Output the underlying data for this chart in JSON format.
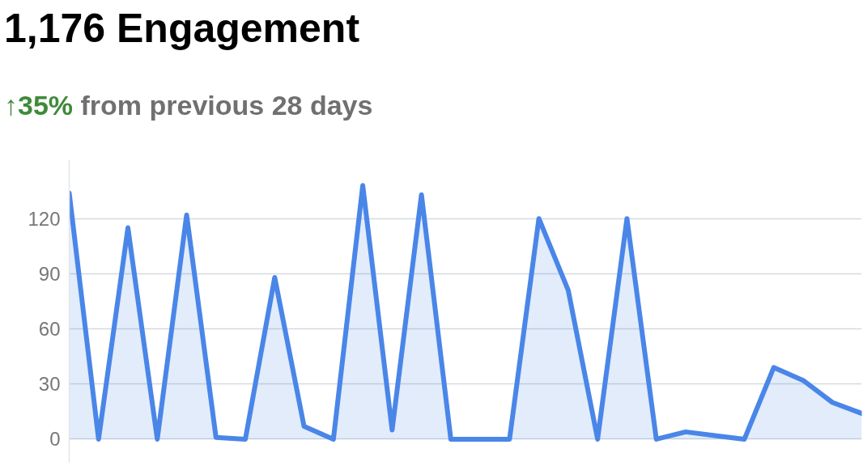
{
  "chart_data": {
    "type": "area",
    "title": "1,176 Engagement",
    "subtitle": "↑35% from previous 28 days",
    "categories": [
      null,
      null,
      null,
      null,
      null,
      null,
      null,
      null,
      null,
      null,
      null,
      null,
      null,
      null,
      null,
      null,
      null,
      null,
      null,
      null,
      null,
      null,
      null,
      null,
      null,
      null,
      null,
      null
    ],
    "series": [
      {
        "color": "#4a86e8",
        "values": [
          134,
          0,
          115,
          0,
          122,
          1,
          0,
          88,
          7,
          0,
          138,
          5,
          133,
          0,
          0,
          0,
          120,
          81,
          0,
          120,
          0,
          4,
          2,
          0,
          39,
          32,
          20,
          14
        ]
      }
    ],
    "ylim": [
      -13,
      152
    ],
    "yticks": [
      0,
      30,
      60,
      90,
      120
    ],
    "grid": "y",
    "tick_labels": "y"
  }
}
